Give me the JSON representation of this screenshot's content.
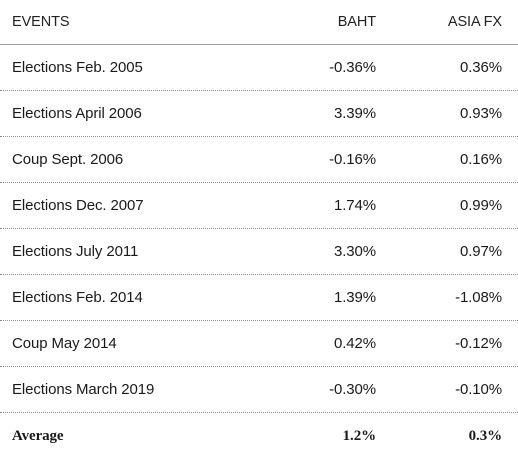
{
  "header": {
    "events": "EVENTS",
    "baht": "BAHT",
    "asia_fx": "ASIA FX"
  },
  "rows": [
    {
      "event": "Elections Feb. 2005",
      "baht": "-0.36%",
      "asia_fx": "0.36%"
    },
    {
      "event": "Elections April 2006",
      "baht": "3.39%",
      "asia_fx": "0.93%"
    },
    {
      "event": "Coup Sept. 2006",
      "baht": "-0.16%",
      "asia_fx": "0.16%"
    },
    {
      "event": "Elections Dec. 2007",
      "baht": "1.74%",
      "asia_fx": "0.99%"
    },
    {
      "event": "Elections July 2011",
      "baht": "3.30%",
      "asia_fx": "0.97%"
    },
    {
      "event": "Elections Feb. 2014",
      "baht": "1.39%",
      "asia_fx": "-1.08%"
    },
    {
      "event": "Coup May 2014",
      "baht": "0.42%",
      "asia_fx": "-0.12%"
    },
    {
      "event": "Elections March 2019",
      "baht": "-0.30%",
      "asia_fx": "-0.10%"
    }
  ],
  "average": {
    "label": "Average",
    "baht": "1.2%",
    "asia_fx": "0.3%"
  }
}
